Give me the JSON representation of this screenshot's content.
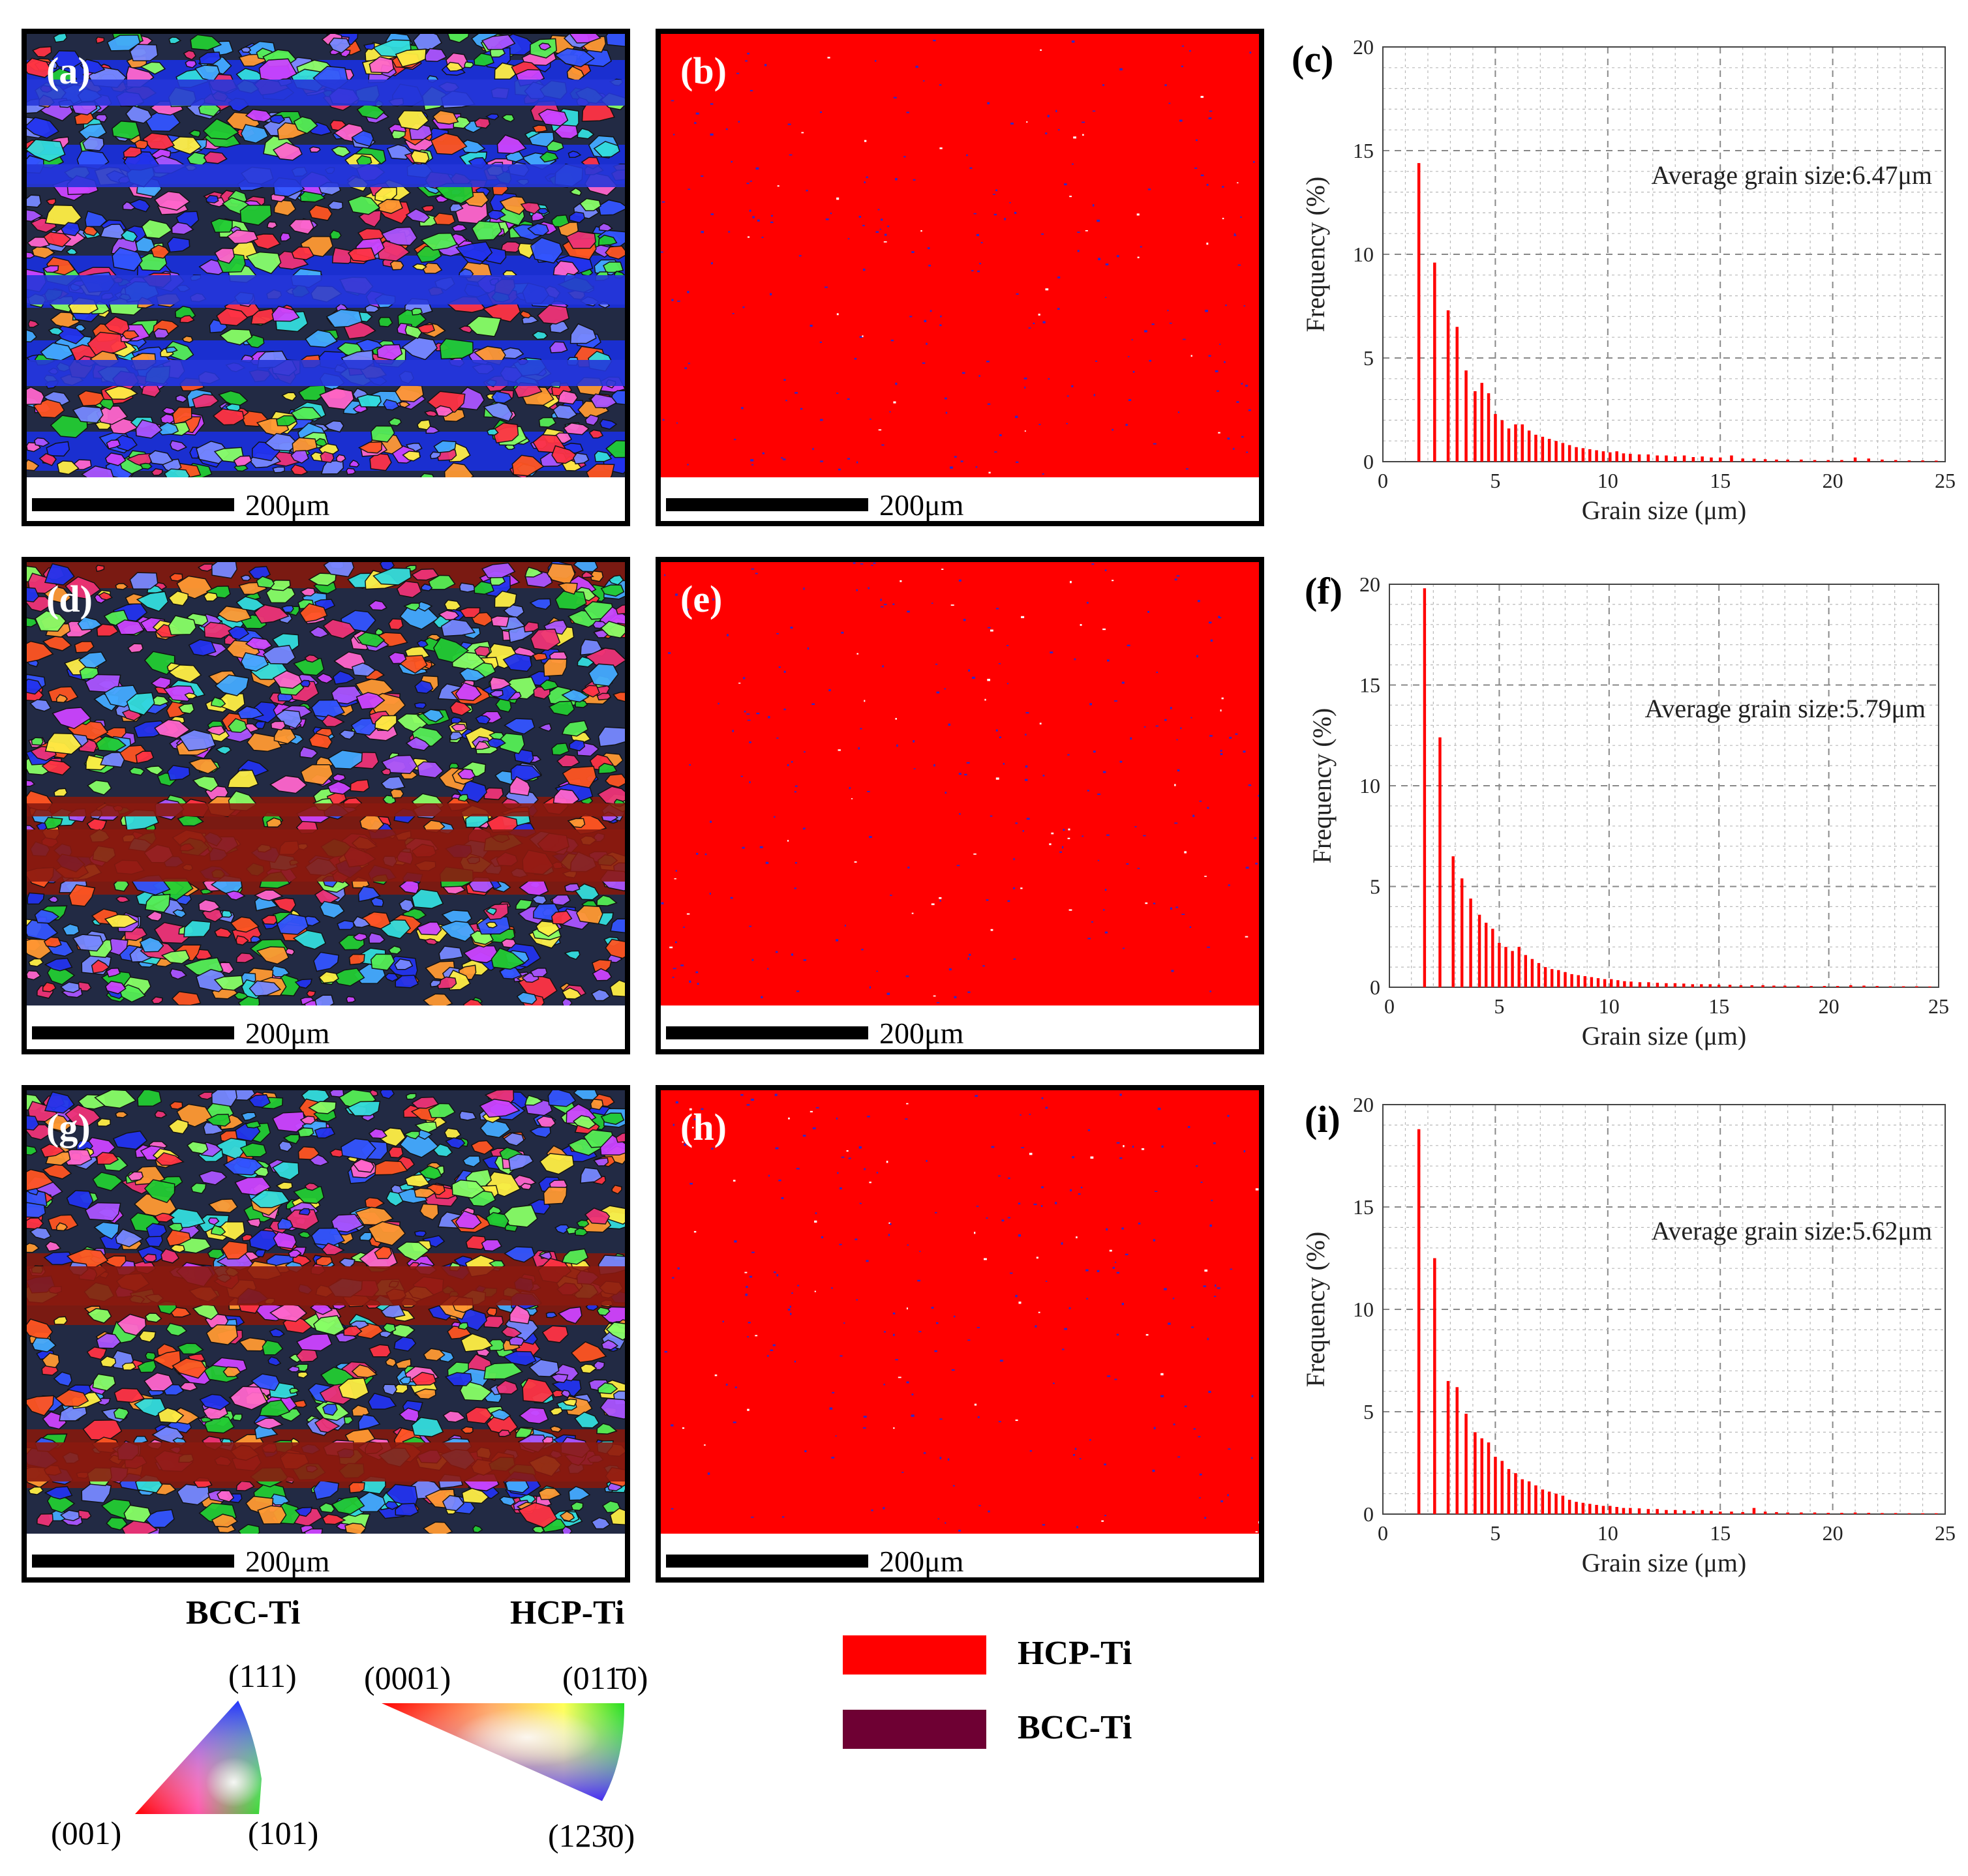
{
  "colors": {
    "hcp": "#ff0000",
    "bcc": "#6e0033",
    "bar": "#ff0000",
    "grid": "#b8b8b8",
    "dots": "#2a2ad0"
  },
  "maps": [
    {
      "id": "a",
      "label": "(a)",
      "scale": "200μm",
      "kind": "ipf",
      "dominant": "blue"
    },
    {
      "id": "b",
      "label": "(b)",
      "scale": "200μm",
      "kind": "phase"
    },
    {
      "id": "d",
      "label": "(d)",
      "scale": "200μm",
      "kind": "ipf",
      "dominant": "red"
    },
    {
      "id": "e",
      "label": "(e)",
      "scale": "200μm",
      "kind": "phase"
    },
    {
      "id": "g",
      "label": "(g)",
      "scale": "200μm",
      "kind": "ipf",
      "dominant": "red"
    },
    {
      "id": "h",
      "label": "(h)",
      "scale": "200μm",
      "kind": "phase"
    }
  ],
  "chart_data": [
    {
      "id": "c",
      "label": "(c)",
      "type": "bar",
      "xlabel": "Grain size (μm)",
      "ylabel": "Frequency (%)",
      "xlim": [
        0,
        25
      ],
      "ylim": [
        0,
        20
      ],
      "xticks": [
        "0",
        "5",
        "10",
        "15",
        "20",
        "25"
      ],
      "yticks": [
        "0",
        "5",
        "10",
        "15",
        "20"
      ],
      "annotation": "Average grain size:6.47μm",
      "x": [
        1.6,
        2.3,
        2.9,
        3.3,
        3.7,
        4.1,
        4.4,
        4.7,
        5.0,
        5.3,
        5.6,
        5.9,
        6.2,
        6.5,
        6.8,
        7.1,
        7.4,
        7.7,
        8.0,
        8.3,
        8.6,
        8.9,
        9.2,
        9.5,
        9.8,
        10.1,
        10.4,
        10.7,
        11.0,
        11.4,
        11.8,
        12.2,
        12.6,
        13.0,
        13.4,
        13.8,
        14.2,
        14.6,
        15.0,
        15.5,
        16.0,
        16.5,
        17.0,
        17.5,
        18.0,
        18.6,
        19.2,
        19.8,
        20.4,
        21.0,
        21.6,
        22.2,
        22.8,
        23.4,
        24.0,
        24.6
      ],
      "values": [
        14.4,
        9.6,
        7.3,
        6.5,
        4.4,
        3.4,
        3.8,
        3.3,
        2.3,
        2.0,
        1.6,
        1.8,
        1.8,
        1.5,
        1.3,
        1.2,
        1.1,
        1.0,
        0.9,
        0.8,
        0.7,
        0.65,
        0.6,
        0.55,
        0.5,
        0.45,
        0.5,
        0.4,
        0.38,
        0.35,
        0.35,
        0.3,
        0.3,
        0.25,
        0.3,
        0.22,
        0.25,
        0.2,
        0.2,
        0.3,
        0.15,
        0.15,
        0.12,
        0.1,
        0.1,
        0.1,
        0.08,
        0.08,
        0.08,
        0.2,
        0.15,
        0.1,
        0.08,
        0.06,
        0.06,
        0.05
      ]
    },
    {
      "id": "f",
      "label": "(f)",
      "type": "bar",
      "xlabel": "Grain size (μm)",
      "ylabel": "Frequency (%)",
      "xlim": [
        0,
        25
      ],
      "ylim": [
        0,
        20
      ],
      "xticks": [
        "0",
        "5",
        "10",
        "15",
        "20",
        "25"
      ],
      "yticks": [
        "0",
        "5",
        "10",
        "15",
        "20"
      ],
      "annotation": "Average grain size:5.79μm",
      "x": [
        1.6,
        2.3,
        2.9,
        3.3,
        3.7,
        4.1,
        4.4,
        4.7,
        5.0,
        5.3,
        5.6,
        5.9,
        6.2,
        6.5,
        6.8,
        7.1,
        7.4,
        7.7,
        8.0,
        8.3,
        8.6,
        8.9,
        9.2,
        9.5,
        9.8,
        10.1,
        10.4,
        10.7,
        11.0,
        11.4,
        11.8,
        12.2,
        12.6,
        13.0,
        13.4,
        13.8,
        14.2,
        14.6,
        15.0,
        15.5,
        16.0,
        16.5,
        17.0,
        17.5,
        18.0,
        18.6,
        19.2,
        19.8,
        20.4,
        21.0,
        21.6,
        22.2,
        22.8,
        23.4,
        24.0,
        24.6
      ],
      "values": [
        19.8,
        12.4,
        6.5,
        5.4,
        4.4,
        3.6,
        3.2,
        2.9,
        2.2,
        2.0,
        1.8,
        2.0,
        1.6,
        1.4,
        1.2,
        1.0,
        0.9,
        0.85,
        0.75,
        0.65,
        0.6,
        0.55,
        0.5,
        0.45,
        0.4,
        0.4,
        0.35,
        0.3,
        0.28,
        0.25,
        0.25,
        0.22,
        0.2,
        0.2,
        0.18,
        0.15,
        0.15,
        0.15,
        0.12,
        0.12,
        0.1,
        0.1,
        0.1,
        0.08,
        0.08,
        0.08,
        0.06,
        0.06,
        0.06,
        0.1,
        0.08,
        0.06,
        0.05,
        0.05,
        0.05,
        0.04
      ]
    },
    {
      "id": "i",
      "label": "(i)",
      "type": "bar",
      "xlabel": "Grain size (μm)",
      "ylabel": "Frequency (%)",
      "xlim": [
        0,
        25
      ],
      "ylim": [
        0,
        20
      ],
      "xticks": [
        "0",
        "5",
        "10",
        "15",
        "20",
        "25"
      ],
      "yticks": [
        "0",
        "5",
        "10",
        "15",
        "20"
      ],
      "annotation": "Average grain size:5.62μm",
      "x": [
        1.6,
        2.3,
        2.9,
        3.3,
        3.7,
        4.1,
        4.4,
        4.7,
        5.0,
        5.3,
        5.6,
        5.9,
        6.2,
        6.5,
        6.8,
        7.1,
        7.4,
        7.7,
        8.0,
        8.3,
        8.6,
        8.9,
        9.2,
        9.5,
        9.8,
        10.1,
        10.4,
        10.7,
        11.0,
        11.4,
        11.8,
        12.2,
        12.6,
        13.0,
        13.4,
        13.8,
        14.2,
        14.6,
        15.0,
        15.5,
        16.0,
        16.5,
        17.0,
        17.5,
        18.0,
        18.6,
        19.2,
        19.8,
        20.4,
        21.0,
        21.6,
        22.2,
        22.8,
        23.4,
        24.0,
        24.6
      ],
      "values": [
        18.8,
        12.5,
        6.5,
        6.2,
        4.9,
        4.0,
        3.7,
        3.5,
        2.8,
        2.6,
        2.2,
        2.0,
        1.7,
        1.6,
        1.4,
        1.2,
        1.1,
        1.0,
        0.9,
        0.7,
        0.6,
        0.55,
        0.5,
        0.45,
        0.4,
        0.4,
        0.35,
        0.3,
        0.3,
        0.28,
        0.25,
        0.25,
        0.2,
        0.2,
        0.18,
        0.15,
        0.2,
        0.15,
        0.12,
        0.12,
        0.1,
        0.3,
        0.12,
        0.1,
        0.08,
        0.08,
        0.08,
        0.06,
        0.06,
        0.08,
        0.06,
        0.05,
        0.05,
        0.04,
        0.04,
        0.04
      ]
    }
  ],
  "ipf_legends": {
    "bcc": {
      "title": "BCC-Ti",
      "top": "(111)",
      "left": "(001)",
      "right": "(101)"
    },
    "hcp": {
      "title": "HCP-Ti",
      "left": "(0001)",
      "right": "(01̄10)",
      "bottom": "(12̄30)",
      "right_display": "(011̄0)",
      "bottom_display": "(123̄0)"
    }
  },
  "phase_legend": [
    {
      "name": "HCP-Ti",
      "color": "#ff0000"
    },
    {
      "name": "BCC-Ti",
      "color": "#6e0033"
    }
  ]
}
